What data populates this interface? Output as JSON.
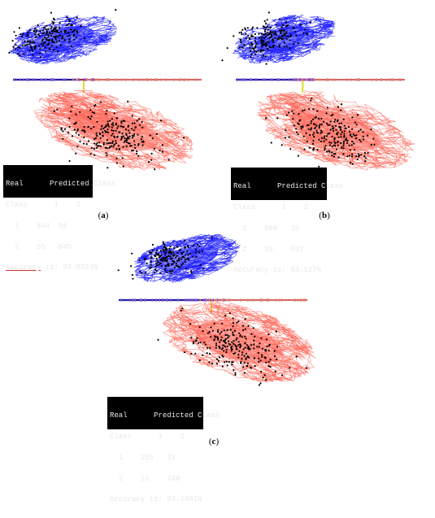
{
  "panels": [
    {
      "id": "a",
      "caption": "a",
      "table": {
        "header1": [
          "Real",
          "Predicted Class"
        ],
        "header2": [
          "Class",
          "1",
          "2"
        ],
        "rows": [
          [
            "1",
            "844",
            "56"
          ],
          [
            "2",
            "55",
            "845"
          ]
        ],
        "accuracy_label": "Accuracy",
        "accuracy_text": "is: 93.8333%"
      }
    },
    {
      "id": "b",
      "caption": "b",
      "table": {
        "header1": [
          "Real",
          "Predicted Class"
        ],
        "header2": [
          "Class",
          "1",
          "2"
        ],
        "rows": [
          [
            "1",
            "589",
            "35"
          ],
          [
            "2",
            "39",
            "597"
          ]
        ],
        "accuracy_label": "Accuracy",
        "accuracy_text": "is: 94.127%"
      }
    },
    {
      "id": "c",
      "caption": "c",
      "table": {
        "header1": [
          "Real",
          "Predicted Class"
        ],
        "header2": [
          "Class",
          "1",
          "2"
        ],
        "rows": [
          [
            "1",
            "255",
            "21"
          ],
          [
            "2",
            "16",
            "248"
          ]
        ],
        "accuracy_label": "Accuracy",
        "accuracy_text": "is: 93.1481%"
      }
    }
  ],
  "colors": {
    "class1_graph": "#1a1aff",
    "class2_graph": "#ff6a5c",
    "nodes": "#000000",
    "link": "#e0d000",
    "axis_class1": "#2020a0",
    "axis_class2": "#c83030"
  }
}
